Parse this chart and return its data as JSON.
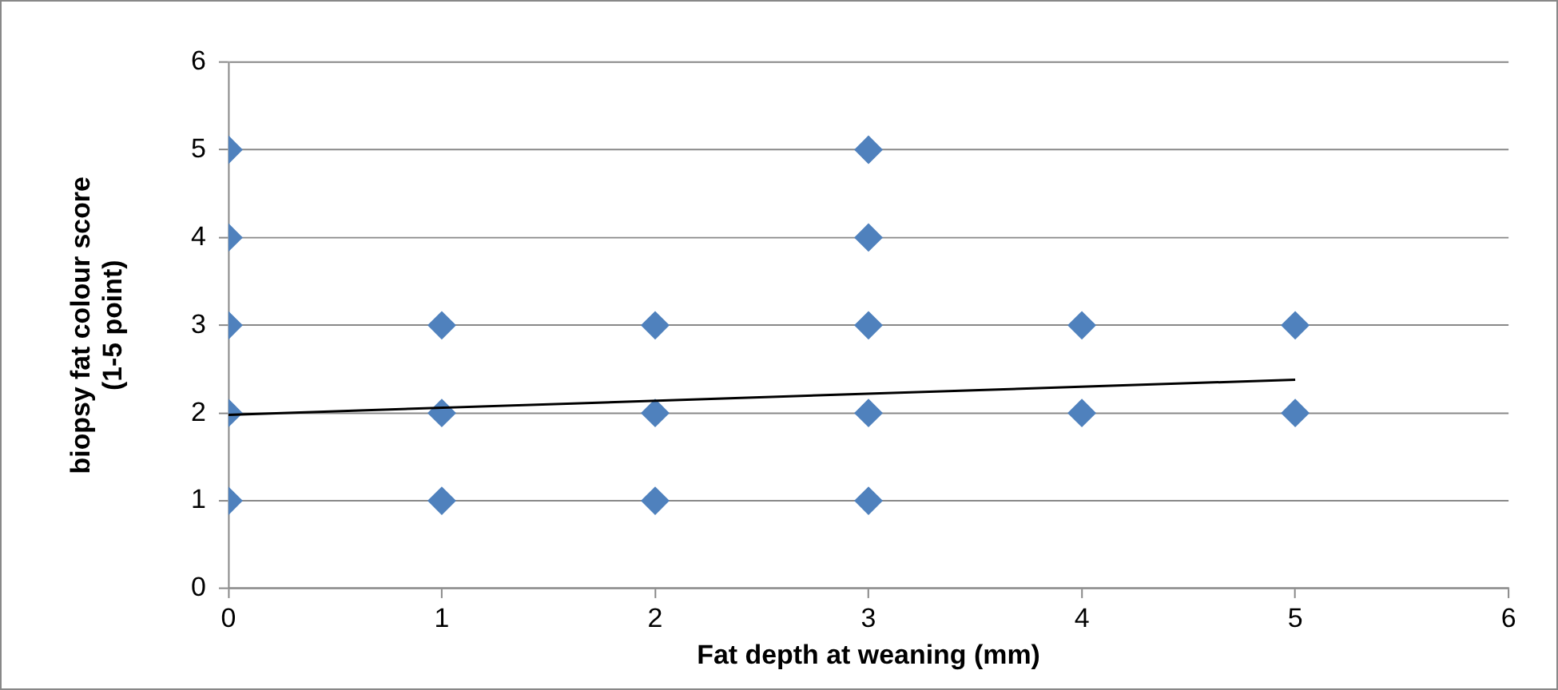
{
  "chart_data": {
    "type": "scatter",
    "xlabel": "Fat depth at weaning (mm)",
    "ylabel": "biopsy fat colour score (1-5 point)",
    "xlim": [
      0,
      6
    ],
    "ylim": [
      0,
      6
    ],
    "xticks": [
      0,
      1,
      2,
      3,
      4,
      5,
      6
    ],
    "yticks": [
      0,
      1,
      2,
      3,
      4,
      5,
      6
    ],
    "grid": "y",
    "marker": "diamond",
    "series": [
      {
        "color": "#4f81bd",
        "x": [
          0,
          0,
          0,
          0,
          0,
          1,
          1,
          1,
          2,
          2,
          2,
          3,
          3,
          3,
          3,
          3,
          4,
          4,
          5,
          5
        ],
        "values": [
          1,
          2,
          3,
          4,
          5,
          1,
          2,
          3,
          1,
          2,
          3,
          1,
          2,
          3,
          4,
          5,
          2,
          3,
          2,
          3
        ]
      },
      {
        "type": "line",
        "color": "#000000",
        "line_style": "solid",
        "marker": "none",
        "x": [
          0,
          5
        ],
        "values": [
          1.98,
          2.38
        ]
      }
    ]
  }
}
